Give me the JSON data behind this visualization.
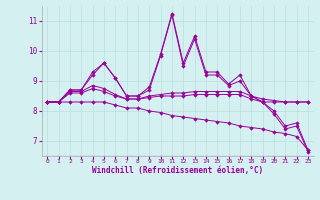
{
  "xlabel": "Windchill (Refroidissement éolien,°C)",
  "bg_color": "#d4f0f0",
  "line_color": "#990099",
  "grid_color": "#b8e0e0",
  "x": [
    0,
    1,
    2,
    3,
    4,
    5,
    6,
    7,
    8,
    9,
    10,
    11,
    12,
    13,
    14,
    15,
    16,
    17,
    18,
    19,
    20,
    21,
    22,
    23
  ],
  "line1": [
    8.3,
    8.3,
    8.7,
    8.7,
    9.3,
    9.6,
    9.1,
    8.5,
    8.5,
    8.8,
    9.9,
    11.25,
    9.6,
    10.5,
    9.3,
    9.3,
    8.9,
    9.2,
    8.5,
    8.3,
    8.0,
    7.5,
    7.6,
    6.7
  ],
  "line2": [
    8.3,
    8.3,
    8.7,
    8.7,
    9.2,
    9.6,
    9.1,
    8.5,
    8.5,
    8.7,
    9.85,
    11.2,
    9.5,
    10.4,
    9.2,
    9.2,
    8.85,
    9.0,
    8.5,
    8.3,
    7.9,
    7.4,
    7.5,
    6.65
  ],
  "line3": [
    8.3,
    8.3,
    8.65,
    8.65,
    8.85,
    8.75,
    8.55,
    8.4,
    8.4,
    8.5,
    8.55,
    8.6,
    8.6,
    8.65,
    8.65,
    8.65,
    8.65,
    8.65,
    8.5,
    8.4,
    8.35,
    8.3,
    8.3,
    8.3
  ],
  "line4": [
    8.3,
    8.3,
    8.6,
    8.6,
    8.75,
    8.65,
    8.5,
    8.4,
    8.4,
    8.45,
    8.5,
    8.5,
    8.5,
    8.55,
    8.55,
    8.55,
    8.55,
    8.55,
    8.4,
    8.3,
    8.3,
    8.3,
    8.3,
    8.3
  ],
  "line5": [
    8.3,
    8.3,
    8.3,
    8.3,
    8.3,
    8.3,
    8.2,
    8.1,
    8.1,
    8.0,
    7.95,
    7.85,
    7.8,
    7.75,
    7.7,
    7.65,
    7.6,
    7.5,
    7.45,
    7.4,
    7.3,
    7.25,
    7.15,
    6.7
  ],
  "ylim": [
    6.5,
    11.5
  ],
  "yticks": [
    7,
    8,
    9,
    10,
    11
  ],
  "xticks": [
    0,
    1,
    2,
    3,
    4,
    5,
    6,
    7,
    8,
    9,
    10,
    11,
    12,
    13,
    14,
    15,
    16,
    17,
    18,
    19,
    20,
    21,
    22,
    23
  ]
}
